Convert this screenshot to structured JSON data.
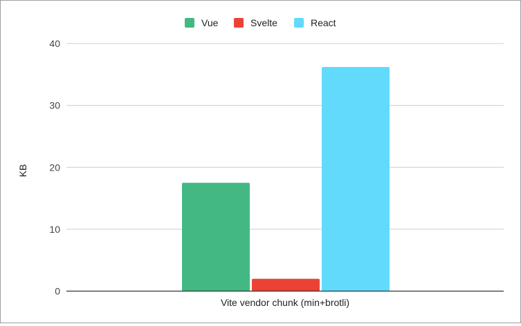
{
  "chart_data": {
    "type": "bar",
    "categories": [
      "Vite vendor chunk (min+brotli)"
    ],
    "series": [
      {
        "name": "Vue",
        "values": [
          17.5
        ],
        "color": "#43b883"
      },
      {
        "name": "Svelte",
        "values": [
          2.0
        ],
        "color": "#ea4335"
      },
      {
        "name": "React",
        "values": [
          36.2
        ],
        "color": "#61dafb"
      }
    ],
    "title": "",
    "xlabel": "",
    "ylabel": "KB",
    "ylim": [
      0,
      40
    ],
    "yticks": [
      0,
      10,
      20,
      30,
      40
    ],
    "grid": true,
    "legend_position": "top"
  }
}
